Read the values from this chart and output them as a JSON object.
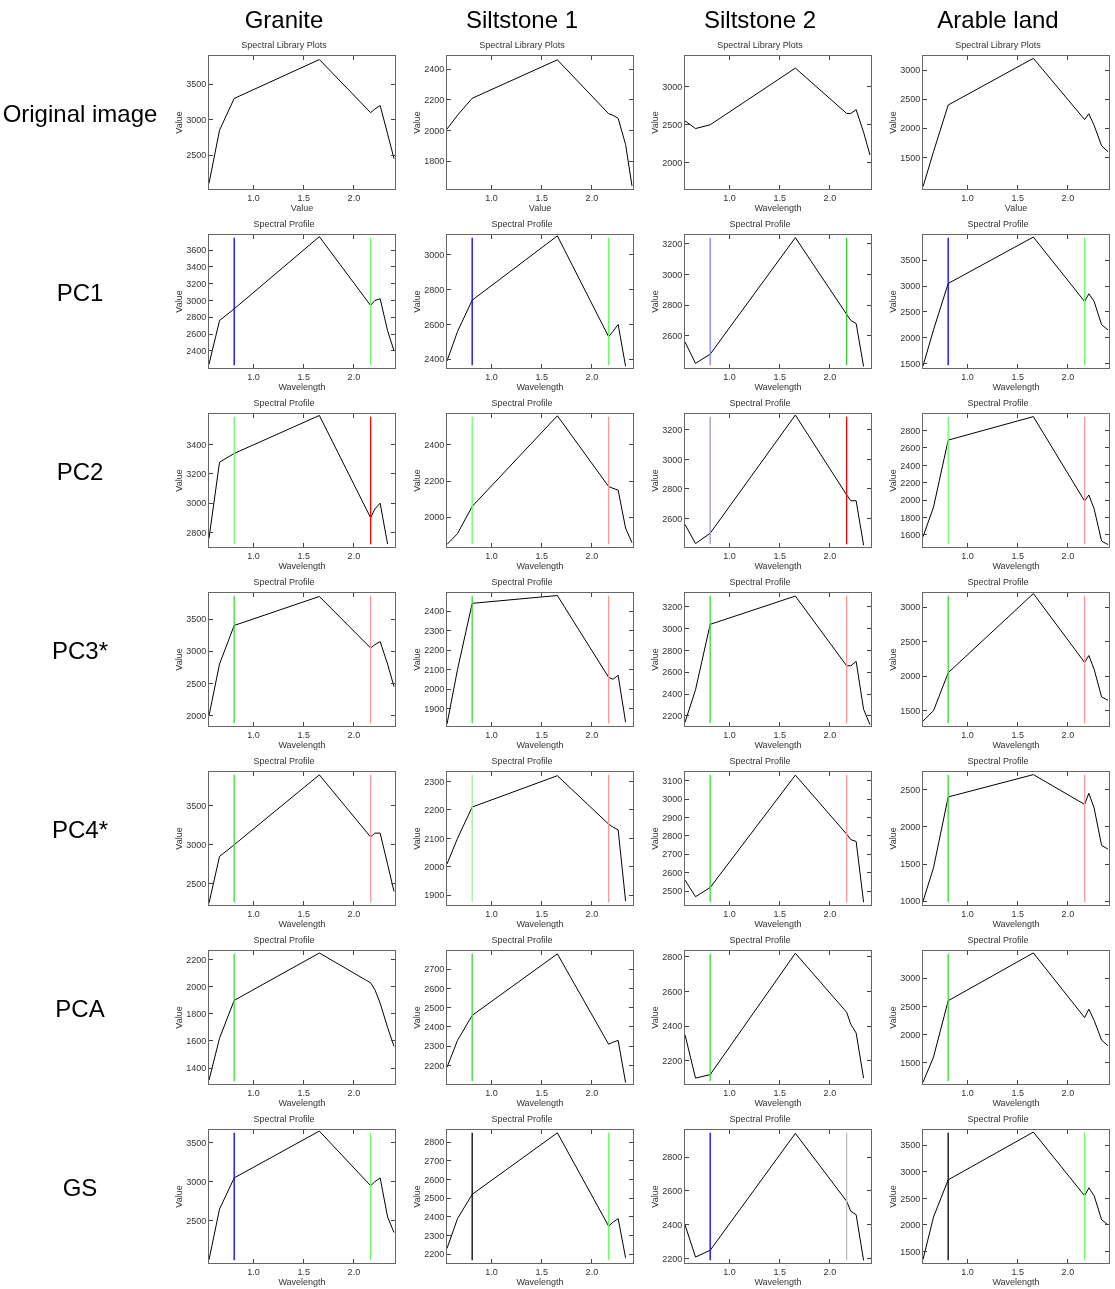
{
  "chart_data": [
    {
      "type": "line",
      "title": "Spectral Library Plots",
      "xlabel": "Value",
      "ylabel": "Value",
      "annotations": [
        "Granite",
        "Original image"
      ],
      "x": [
        0.556,
        0.661,
        0.807,
        1.656,
        2.167,
        2.209,
        2.262,
        2.336,
        2.4
      ],
      "values": [
        2100,
        2850,
        3300,
        3850,
        3100,
        3150,
        3200,
        2800,
        2450
      ],
      "color": "#000000",
      "xlim": [
        0.556,
        2.41
      ],
      "xticks": [
        {
          "value": 1,
          "label": "1.0"
        },
        {
          "value": 1.5,
          "label": "1.5"
        },
        {
          "value": 2,
          "label": "2.0"
        }
      ],
      "ylim": [
        2020,
        3900
      ],
      "yticks": [
        2500,
        3000,
        3500
      ]
    },
    {
      "type": "line",
      "title": "Spectral Library Plots",
      "xlabel": "Value",
      "ylabel": "Value",
      "annotations": [
        "Siltstone 1"
      ],
      "x": [
        0.556,
        0.661,
        0.807,
        1.656,
        2.167,
        2.209,
        2.262,
        2.336,
        2.4
      ],
      "values": [
        2010,
        2100,
        2210,
        2460,
        2110,
        2100,
        2080,
        1910,
        1640
      ],
      "color": "#000000",
      "xlim": [
        0.556,
        2.41
      ],
      "xticks": [
        {
          "value": 1,
          "label": "1.0"
        },
        {
          "value": 1.5,
          "label": "1.5"
        },
        {
          "value": 2,
          "label": "2.0"
        }
      ],
      "ylim": [
        1620,
        2485
      ],
      "yticks": [
        1800,
        2000,
        2200,
        2400
      ]
    },
    {
      "type": "line",
      "title": "Spectral Library Plots",
      "xlabel": "Wavelength",
      "ylabel": "Value",
      "annotations": [
        "Siltstone 2"
      ],
      "x": [
        0.556,
        0.661,
        0.807,
        1.656,
        2.167,
        2.209,
        2.262,
        2.336,
        2.4
      ],
      "values": [
        2550,
        2450,
        2500,
        3250,
        2650,
        2650,
        2700,
        2400,
        2100
      ],
      "color": "#000000",
      "xlim": [
        0.556,
        2.41
      ],
      "xticks": [
        {
          "value": 1,
          "label": "1.0"
        },
        {
          "value": 1.5,
          "label": "1.5"
        },
        {
          "value": 2,
          "label": "2.0"
        }
      ],
      "ylim": [
        1650,
        3410
      ],
      "yticks": [
        2000,
        2500,
        3000
      ]
    },
    {
      "type": "line",
      "title": "Spectral Library Plots",
      "xlabel": "Value",
      "ylabel": "Value",
      "annotations": [
        "Arable land"
      ],
      "x": [
        0.556,
        0.661,
        0.807,
        1.656,
        2.167,
        2.209,
        2.262,
        2.336,
        2.4
      ],
      "values": [
        1000,
        1600,
        2400,
        3200,
        2150,
        2250,
        2050,
        1700,
        1600
      ],
      "color": "#000000",
      "xlim": [
        0.556,
        2.41
      ],
      "xticks": [
        {
          "value": 1,
          "label": "1.0"
        },
        {
          "value": 1.5,
          "label": "1.5"
        },
        {
          "value": 2,
          "label": "2.0"
        }
      ],
      "ylim": [
        960,
        3240
      ],
      "yticks": [
        1500,
        2000,
        2500,
        3000
      ]
    },
    {
      "type": "line",
      "title": "Spectral Profile",
      "xlabel": "Wavelength",
      "ylabel": "Value",
      "annotations": [
        "PC1"
      ],
      "x": [
        0.556,
        0.661,
        0.807,
        1.656,
        2.167,
        2.209,
        2.262,
        2.336,
        2.4
      ],
      "values": [
        2240,
        2760,
        2900,
        3760,
        2940,
        3000,
        3020,
        2640,
        2400
      ],
      "color": "#000000",
      "xlim": [
        0.556,
        2.41
      ],
      "xticks": [
        {
          "value": 1,
          "label": "1.0"
        },
        {
          "value": 1.5,
          "label": "1.5"
        },
        {
          "value": 2,
          "label": "2.0"
        }
      ],
      "ylim": [
        2195,
        3780
      ],
      "yticks": [
        2400,
        2600,
        2800,
        3000,
        3200,
        3400,
        3600
      ],
      "ref_lines": [
        {
          "axis": "x",
          "value": 0.807,
          "color": "#0000ff"
        },
        {
          "axis": "x",
          "value": 2.167,
          "color": "#66ff66"
        }
      ]
    },
    {
      "type": "line",
      "title": "Spectral Profile",
      "xlabel": "Wavelength",
      "ylabel": "Value",
      "x": [
        0.556,
        0.661,
        0.807,
        1.656,
        2.167,
        2.209,
        2.262,
        2.336
      ],
      "values": [
        2390,
        2560,
        2740,
        3110,
        2530,
        2560,
        2600,
        2360
      ],
      "color": "#000000",
      "xlim": [
        0.556,
        2.41
      ],
      "xticks": [
        {
          "value": 1,
          "label": "1.0"
        },
        {
          "value": 1.5,
          "label": "1.5"
        },
        {
          "value": 2,
          "label": "2.0"
        }
      ],
      "ylim": [
        2350,
        3115
      ],
      "yticks": [
        2400,
        2600,
        2800,
        3000
      ],
      "ref_lines": [
        {
          "axis": "x",
          "value": 0.807,
          "color": "#0000ff"
        },
        {
          "axis": "x",
          "value": 2.167,
          "color": "#66ff66"
        }
      ]
    },
    {
      "type": "line",
      "title": "Spectral Profile",
      "xlabel": "Wavelength",
      "ylabel": "Value",
      "x": [
        0.556,
        0.661,
        0.807,
        1.656,
        2.167,
        2.209,
        2.262,
        2.336
      ],
      "values": [
        2560,
        2420,
        2480,
        3240,
        2740,
        2700,
        2680,
        2400
      ],
      "color": "#000000",
      "xlim": [
        0.556,
        2.41
      ],
      "xticks": [
        {
          "value": 1,
          "label": "1.0"
        },
        {
          "value": 1.5,
          "label": "1.5"
        },
        {
          "value": 2,
          "label": "2.0"
        }
      ],
      "ylim": [
        2390,
        3257
      ],
      "yticks": [
        2600,
        2800,
        3000,
        3200
      ],
      "ref_lines": [
        {
          "axis": "x",
          "value": 0.807,
          "color": "#8080ff"
        },
        {
          "axis": "x",
          "value": 2.167,
          "color": "#33cc33"
        }
      ]
    },
    {
      "type": "line",
      "title": "Spectral Profile",
      "xlabel": "Wavelength",
      "ylabel": "Value",
      "x": [
        0.556,
        0.661,
        0.807,
        1.656,
        2.167,
        2.209,
        2.262,
        2.336,
        2.4
      ],
      "values": [
        1450,
        2150,
        3050,
        3950,
        2700,
        2850,
        2700,
        2250,
        2150
      ],
      "color": "#000000",
      "xlim": [
        0.556,
        2.41
      ],
      "xticks": [
        {
          "value": 1,
          "label": "1.0"
        },
        {
          "value": 1.5,
          "label": "1.5"
        },
        {
          "value": 2,
          "label": "2.0"
        }
      ],
      "ylim": [
        1410,
        3990
      ],
      "yticks": [
        1500,
        2000,
        2500,
        3000,
        3500
      ],
      "ref_lines": [
        {
          "axis": "x",
          "value": 0.807,
          "color": "#0000ff"
        },
        {
          "axis": "x",
          "value": 2.167,
          "color": "#66ff66"
        }
      ]
    },
    {
      "type": "line",
      "title": "Spectral Profile",
      "xlabel": "Wavelength",
      "ylabel": "Value",
      "annotations": [
        "PC2"
      ],
      "x": [
        0.556,
        0.661,
        0.807,
        1.656,
        2.167,
        2.209,
        2.262,
        2.336
      ],
      "values": [
        2760,
        3280,
        3340,
        3600,
        2900,
        2960,
        3000,
        2720
      ],
      "color": "#000000",
      "xlim": [
        0.556,
        2.41
      ],
      "xticks": [
        {
          "value": 1,
          "label": "1.0"
        },
        {
          "value": 1.5,
          "label": "1.5"
        },
        {
          "value": 2,
          "label": "2.0"
        }
      ],
      "ylim": [
        2700,
        3610
      ],
      "yticks": [
        2800,
        3000,
        3200,
        3400
      ],
      "ref_lines": [
        {
          "axis": "x",
          "value": 0.807,
          "color": "#66ff66"
        },
        {
          "axis": "x",
          "value": 2.167,
          "color": "#ff0000"
        }
      ]
    },
    {
      "type": "line",
      "title": "Spectral Profile",
      "xlabel": "Wavelength",
      "ylabel": "Value",
      "x": [
        0.556,
        0.661,
        0.807,
        1.656,
        2.167,
        2.209,
        2.262,
        2.336,
        2.4
      ],
      "values": [
        1850,
        1910,
        2060,
        2560,
        2170,
        2160,
        2150,
        1940,
        1860
      ],
      "color": "#000000",
      "xlim": [
        0.556,
        2.41
      ],
      "xticks": [
        {
          "value": 1,
          "label": "1.0"
        },
        {
          "value": 1.5,
          "label": "1.5"
        },
        {
          "value": 2,
          "label": "2.0"
        }
      ],
      "ylim": [
        1836,
        2570
      ],
      "yticks": [
        2000,
        2200,
        2400
      ],
      "ref_lines": [
        {
          "axis": "x",
          "value": 0.807,
          "color": "#66ff66"
        },
        {
          "axis": "x",
          "value": 2.167,
          "color": "#ff9999"
        }
      ]
    },
    {
      "type": "line",
      "title": "Spectral Profile",
      "xlabel": "Wavelength",
      "ylabel": "Value",
      "x": [
        0.556,
        0.661,
        0.807,
        1.656,
        2.167,
        2.209,
        2.262,
        2.336
      ],
      "values": [
        2560,
        2430,
        2500,
        3300,
        2760,
        2720,
        2720,
        2420
      ],
      "color": "#000000",
      "xlim": [
        0.556,
        2.41
      ],
      "xticks": [
        {
          "value": 1,
          "label": "1.0"
        },
        {
          "value": 1.5,
          "label": "1.5"
        },
        {
          "value": 2,
          "label": "2.0"
        }
      ],
      "ylim": [
        2407,
        3307
      ],
      "yticks": [
        2600,
        2800,
        3000,
        3200
      ],
      "ref_lines": [
        {
          "axis": "x",
          "value": 0.807,
          "color": "#9999cc"
        },
        {
          "axis": "x",
          "value": 2.167,
          "color": "#ff0000"
        }
      ]
    },
    {
      "type": "line",
      "title": "Spectral Profile",
      "xlabel": "Wavelength",
      "ylabel": "Value",
      "x": [
        0.556,
        0.661,
        0.807,
        1.656,
        2.167,
        2.209,
        2.262,
        2.336,
        2.4
      ],
      "values": [
        1580,
        1920,
        2690,
        2960,
        1990,
        2060,
        1900,
        1530,
        1490
      ],
      "color": "#000000",
      "xlim": [
        0.556,
        2.41
      ],
      "xticks": [
        {
          "value": 1,
          "label": "1.0"
        },
        {
          "value": 1.5,
          "label": "1.5"
        },
        {
          "value": 2,
          "label": "2.0"
        }
      ],
      "ylim": [
        1462,
        2990
      ],
      "yticks": [
        1600,
        1800,
        2000,
        2200,
        2400,
        2600,
        2800
      ],
      "ref_lines": [
        {
          "axis": "x",
          "value": 0.807,
          "color": "#66ff66"
        },
        {
          "axis": "x",
          "value": 2.167,
          "color": "#ff9999"
        }
      ]
    },
    {
      "type": "line",
      "title": "Spectral Profile",
      "xlabel": "Wavelength",
      "ylabel": "Value",
      "annotations": [
        "PC3*"
      ],
      "x": [
        0.556,
        0.661,
        0.807,
        1.656,
        2.167,
        2.209,
        2.262,
        2.336,
        2.4
      ],
      "values": [
        2000,
        2800,
        3400,
        3850,
        3050,
        3100,
        3150,
        2800,
        2450
      ],
      "color": "#000000",
      "xlim": [
        0.556,
        2.41
      ],
      "xticks": [
        {
          "value": 1,
          "label": "1.0"
        },
        {
          "value": 1.5,
          "label": "1.5"
        },
        {
          "value": 2,
          "label": "2.0"
        }
      ],
      "ylim": [
        1838,
        3904
      ],
      "yticks": [
        2000,
        2500,
        3000,
        3500
      ],
      "ref_lines": [
        {
          "axis": "x",
          "value": 0.807,
          "color": "#33dd33"
        },
        {
          "axis": "x",
          "value": 2.167,
          "color": "#ff9999"
        }
      ]
    },
    {
      "type": "line",
      "title": "Spectral Profile",
      "xlabel": "Wavelength",
      "ylabel": "Value",
      "x": [
        0.556,
        0.661,
        0.807,
        1.656,
        2.167,
        2.209,
        2.262,
        2.336
      ],
      "values": [
        1820,
        2100,
        2440,
        2480,
        2060,
        2050,
        2070,
        1830
      ],
      "color": "#000000",
      "xlim": [
        0.556,
        2.41
      ],
      "xticks": [
        {
          "value": 1,
          "label": "1.0"
        },
        {
          "value": 1.5,
          "label": "1.5"
        },
        {
          "value": 2,
          "label": "2.0"
        }
      ],
      "ylim": [
        1810,
        2493
      ],
      "yticks": [
        1900,
        2000,
        2100,
        2200,
        2300,
        2400
      ],
      "ref_lines": [
        {
          "axis": "x",
          "value": 0.807,
          "color": "#33dd33"
        },
        {
          "axis": "x",
          "value": 2.167,
          "color": "#ff9999"
        }
      ]
    },
    {
      "type": "line",
      "title": "Spectral Profile",
      "xlabel": "Wavelength",
      "ylabel": "Value",
      "x": [
        0.556,
        0.661,
        0.807,
        1.656,
        2.167,
        2.209,
        2.262,
        2.336,
        2.4
      ],
      "values": [
        2140,
        2440,
        3040,
        3300,
        2660,
        2660,
        2700,
        2260,
        2120
      ],
      "color": "#000000",
      "xlim": [
        0.556,
        2.41
      ],
      "xticks": [
        {
          "value": 1,
          "label": "1.0"
        },
        {
          "value": 1.5,
          "label": "1.5"
        },
        {
          "value": 2,
          "label": "2.0"
        }
      ],
      "ylim": [
        2107,
        3328
      ],
      "yticks": [
        2200,
        2400,
        2600,
        2800,
        3000,
        3200
      ],
      "ref_lines": [
        {
          "axis": "x",
          "value": 0.807,
          "color": "#33dd33"
        },
        {
          "axis": "x",
          "value": 2.167,
          "color": "#ff9999"
        }
      ]
    },
    {
      "type": "line",
      "title": "Spectral Profile",
      "xlabel": "Wavelength",
      "ylabel": "Value",
      "x": [
        0.556,
        0.661,
        0.807,
        1.656,
        2.167,
        2.209,
        2.262,
        2.336,
        2.4
      ],
      "values": [
        1350,
        1500,
        2050,
        3200,
        2200,
        2300,
        2100,
        1700,
        1650
      ],
      "color": "#000000",
      "xlim": [
        0.556,
        2.41
      ],
      "xticks": [
        {
          "value": 1,
          "label": "1.0"
        },
        {
          "value": 1.5,
          "label": "1.5"
        },
        {
          "value": 2,
          "label": "2.0"
        }
      ],
      "ylim": [
        1278,
        3208
      ],
      "yticks": [
        1500,
        2000,
        2500,
        3000
      ],
      "ref_lines": [
        {
          "axis": "x",
          "value": 0.807,
          "color": "#33dd33"
        },
        {
          "axis": "x",
          "value": 2.167,
          "color": "#ff9999"
        }
      ]
    },
    {
      "type": "line",
      "title": "Spectral Profile",
      "xlabel": "Wavelength",
      "ylabel": "Value",
      "annotations": [
        "PC4*"
      ],
      "x": [
        0.556,
        0.661,
        0.807,
        1.656,
        2.167,
        2.209,
        2.262,
        2.336,
        2.4
      ],
      "values": [
        2250,
        2850,
        3000,
        3900,
        3100,
        3150,
        3150,
        2750,
        2400
      ],
      "color": "#000000",
      "xlim": [
        0.556,
        2.41
      ],
      "xticks": [
        {
          "value": 1,
          "label": "1.0"
        },
        {
          "value": 1.5,
          "label": "1.5"
        },
        {
          "value": 2,
          "label": "2.0"
        }
      ],
      "ylim": [
        2225,
        3937
      ],
      "yticks": [
        2500,
        3000,
        3500
      ],
      "ref_lines": [
        {
          "axis": "x",
          "value": 0.807,
          "color": "#33dd33"
        },
        {
          "axis": "x",
          "value": 2.167,
          "color": "#ff9999"
        }
      ]
    },
    {
      "type": "line",
      "title": "Spectral Profile",
      "xlabel": "Wavelength",
      "ylabel": "Value",
      "x": [
        0.556,
        0.661,
        0.807,
        1.656,
        2.167,
        2.209,
        2.262,
        2.336
      ],
      "values": [
        2010,
        2100,
        2210,
        2320,
        2150,
        2140,
        2130,
        1880
      ],
      "color": "#000000",
      "xlim": [
        0.556,
        2.41
      ],
      "xticks": [
        {
          "value": 1,
          "label": "1.0"
        },
        {
          "value": 1.5,
          "label": "1.5"
        },
        {
          "value": 2,
          "label": "2.0"
        }
      ],
      "ylim": [
        1866,
        2333
      ],
      "yticks": [
        1900,
        2000,
        2100,
        2200,
        2300
      ],
      "ref_lines": [
        {
          "axis": "x",
          "value": 0.807,
          "color": "#99ee99"
        },
        {
          "axis": "x",
          "value": 2.167,
          "color": "#ff9999"
        }
      ]
    },
    {
      "type": "line",
      "title": "Spectral Profile",
      "xlabel": "Wavelength",
      "ylabel": "Value",
      "x": [
        0.556,
        0.661,
        0.807,
        1.656,
        2.167,
        2.209,
        2.262,
        2.336
      ],
      "values": [
        2560,
        2470,
        2520,
        3130,
        2810,
        2780,
        2770,
        2440
      ],
      "color": "#000000",
      "xlim": [
        0.556,
        2.41
      ],
      "xticks": [
        {
          "value": 1,
          "label": "1.0"
        },
        {
          "value": 1.5,
          "label": "1.5"
        },
        {
          "value": 2,
          "label": "2.0"
        }
      ],
      "ylim": [
        2425,
        3147
      ],
      "yticks": [
        2500,
        2600,
        2700,
        2800,
        2900,
        3000,
        3100
      ],
      "ref_lines": [
        {
          "axis": "x",
          "value": 0.807,
          "color": "#33dd33"
        },
        {
          "axis": "x",
          "value": 2.167,
          "color": "#ff9999"
        }
      ]
    },
    {
      "type": "line",
      "title": "Spectral Profile",
      "xlabel": "Wavelength",
      "ylabel": "Value",
      "x": [
        0.556,
        0.661,
        0.807,
        1.656,
        2.167,
        2.209,
        2.262,
        2.336,
        2.4
      ],
      "values": [
        1000,
        1450,
        2400,
        2700,
        2300,
        2450,
        2250,
        1750,
        1700
      ],
      "color": "#000000",
      "xlim": [
        0.556,
        2.41
      ],
      "xticks": [
        {
          "value": 1,
          "label": "1.0"
        },
        {
          "value": 1.5,
          "label": "1.5"
        },
        {
          "value": 2,
          "label": "2.0"
        }
      ],
      "ylim": [
        950,
        2735
      ],
      "yticks": [
        1000,
        1500,
        2000,
        2500
      ],
      "ref_lines": [
        {
          "axis": "x",
          "value": 0.807,
          "color": "#33dd33"
        },
        {
          "axis": "x",
          "value": 2.167,
          "color": "#ff9999"
        }
      ]
    },
    {
      "type": "line",
      "title": "Spectral Profile",
      "xlabel": "Wavelength",
      "ylabel": "Value",
      "annotations": [
        "PCA"
      ],
      "x": [
        0.556,
        0.661,
        0.807,
        1.656,
        2.167,
        2.209,
        2.262,
        2.336,
        2.4
      ],
      "values": [
        1310,
        1620,
        1900,
        2250,
        2030,
        1980,
        1880,
        1700,
        1560
      ],
      "color": "#000000",
      "xlim": [
        0.556,
        2.41
      ],
      "xticks": [
        {
          "value": 1,
          "label": "1.0"
        },
        {
          "value": 1.5,
          "label": "1.5"
        },
        {
          "value": 2,
          "label": "2.0"
        }
      ],
      "ylim": [
        1282,
        2265
      ],
      "yticks": [
        1400,
        1600,
        1800,
        2000,
        2200
      ],
      "ref_lines": [
        {
          "axis": "x",
          "value": 0.807,
          "color": "#33dd33"
        }
      ]
    },
    {
      "type": "line",
      "title": "Spectral Profile",
      "xlabel": "Wavelength",
      "ylabel": "Value",
      "x": [
        0.556,
        0.661,
        0.807,
        1.656,
        2.167,
        2.209,
        2.262,
        2.336
      ],
      "values": [
        2190,
        2330,
        2460,
        2780,
        2310,
        2320,
        2330,
        2110
      ],
      "color": "#000000",
      "xlim": [
        0.556,
        2.41
      ],
      "xticks": [
        {
          "value": 1,
          "label": "1.0"
        },
        {
          "value": 1.5,
          "label": "1.5"
        },
        {
          "value": 2,
          "label": "2.0"
        }
      ],
      "ylim": [
        2103,
        2795
      ],
      "yticks": [
        2200,
        2300,
        2400,
        2500,
        2600,
        2700
      ],
      "ref_lines": [
        {
          "axis": "x",
          "value": 0.807,
          "color": "#33dd33"
        }
      ]
    },
    {
      "type": "line",
      "title": "Spectral Profile",
      "xlabel": "Wavelength",
      "ylabel": "Value",
      "x": [
        0.556,
        0.661,
        0.807,
        1.656,
        2.167,
        2.209,
        2.262,
        2.336
      ],
      "values": [
        2350,
        2100,
        2120,
        2820,
        2480,
        2410,
        2360,
        2100
      ],
      "color": "#000000",
      "xlim": [
        0.556,
        2.41
      ],
      "xticks": [
        {
          "value": 1,
          "label": "1.0"
        },
        {
          "value": 1.5,
          "label": "1.5"
        },
        {
          "value": 2,
          "label": "2.0"
        }
      ],
      "ylim": [
        2066,
        2833
      ],
      "yticks": [
        2200,
        2400,
        2600,
        2800
      ],
      "ref_lines": [
        {
          "axis": "x",
          "value": 0.807,
          "color": "#33dd33"
        }
      ]
    },
    {
      "type": "line",
      "title": "Spectral Profile",
      "xlabel": "Wavelength",
      "ylabel": "Value",
      "x": [
        0.556,
        0.661,
        0.807,
        1.656,
        2.167,
        2.209,
        2.262,
        2.336,
        2.4
      ],
      "values": [
        1150,
        1600,
        2600,
        3450,
        2300,
        2450,
        2250,
        1900,
        1800
      ],
      "color": "#000000",
      "xlim": [
        0.556,
        2.41
      ],
      "xticks": [
        {
          "value": 1,
          "label": "1.0"
        },
        {
          "value": 1.5,
          "label": "1.5"
        },
        {
          "value": 2,
          "label": "2.0"
        }
      ],
      "ylim": [
        1120,
        3484
      ],
      "yticks": [
        1500,
        2000,
        2500,
        3000
      ],
      "ref_lines": [
        {
          "axis": "x",
          "value": 0.807,
          "color": "#33dd33"
        }
      ]
    },
    {
      "type": "line",
      "title": "Spectral Profile",
      "xlabel": "Wavelength",
      "ylabel": "Value",
      "annotations": [
        "GS"
      ],
      "x": [
        0.556,
        0.661,
        0.807,
        1.656,
        2.167,
        2.209,
        2.262,
        2.336,
        2.4
      ],
      "values": [
        2000,
        2650,
        3050,
        3650,
        2950,
        3000,
        3050,
        2550,
        2350
      ],
      "color": "#000000",
      "xlim": [
        0.556,
        2.41
      ],
      "xticks": [
        {
          "value": 1,
          "label": "1.0"
        },
        {
          "value": 1.5,
          "label": "1.5"
        },
        {
          "value": 2,
          "label": "2.0"
        }
      ],
      "ylim": [
        1959,
        3664
      ],
      "yticks": [
        2500,
        3000,
        3500
      ],
      "ref_lines": [
        {
          "axis": "x",
          "value": 0.807,
          "color": "#0000ff"
        },
        {
          "axis": "x",
          "value": 2.167,
          "color": "#66ff66"
        }
      ]
    },
    {
      "type": "line",
      "title": "Spectral Profile",
      "xlabel": "Wavelength",
      "ylabel": "Value",
      "x": [
        0.556,
        0.661,
        0.807,
        1.656,
        2.167,
        2.209,
        2.262,
        2.336
      ],
      "values": [
        2230,
        2390,
        2520,
        2850,
        2350,
        2370,
        2390,
        2180
      ],
      "color": "#000000",
      "xlim": [
        0.556,
        2.41
      ],
      "xticks": [
        {
          "value": 1,
          "label": "1.0"
        },
        {
          "value": 1.5,
          "label": "1.5"
        },
        {
          "value": 2,
          "label": "2.0"
        }
      ],
      "ylim": [
        2152,
        2865
      ],
      "yticks": [
        2200,
        2300,
        2400,
        2500,
        2600,
        2700,
        2800
      ],
      "ref_lines": [
        {
          "axis": "x",
          "value": 0.807,
          "color": "#000000"
        },
        {
          "axis": "x",
          "value": 2.167,
          "color": "#66ff66"
        }
      ]
    },
    {
      "type": "line",
      "title": "Spectral Profile",
      "xlabel": "Wavelength",
      "ylabel": "Value",
      "x": [
        0.556,
        0.661,
        0.807,
        1.656,
        2.167,
        2.209,
        2.262,
        2.336
      ],
      "values": [
        2400,
        2210,
        2250,
        2940,
        2540,
        2480,
        2460,
        2190
      ],
      "color": "#000000",
      "xlim": [
        0.556,
        2.41
      ],
      "xticks": [
        {
          "value": 1,
          "label": "1.0"
        },
        {
          "value": 1.5,
          "label": "1.5"
        },
        {
          "value": 2,
          "label": "2.0"
        }
      ],
      "ylim": [
        2175,
        2960
      ],
      "yticks": [
        2200,
        2400,
        2600,
        2800
      ],
      "ref_lines": [
        {
          "axis": "x",
          "value": 0.807,
          "color": "#0000ff"
        },
        {
          "axis": "x",
          "value": 2.167,
          "color": "#bbbbbb"
        }
      ]
    },
    {
      "type": "line",
      "title": "Spectral Profile",
      "xlabel": "Wavelength",
      "ylabel": "Value",
      "x": [
        0.556,
        0.661,
        0.807,
        1.656,
        2.167,
        2.209,
        2.262,
        2.336,
        2.4
      ],
      "values": [
        1350,
        2150,
        2850,
        3750,
        2550,
        2700,
        2550,
        2100,
        2000
      ],
      "color": "#000000",
      "xlim": [
        0.556,
        2.41
      ],
      "xticks": [
        {
          "value": 1,
          "label": "1.0"
        },
        {
          "value": 1.5,
          "label": "1.5"
        },
        {
          "value": 2,
          "label": "2.0"
        }
      ],
      "ylim": [
        1283,
        3789
      ],
      "yticks": [
        1500,
        2000,
        2500,
        3000,
        3500
      ],
      "ref_lines": [
        {
          "axis": "x",
          "value": 0.807,
          "color": "#000000"
        },
        {
          "axis": "x",
          "value": 2.167,
          "color": "#66ff66"
        }
      ]
    }
  ]
}
